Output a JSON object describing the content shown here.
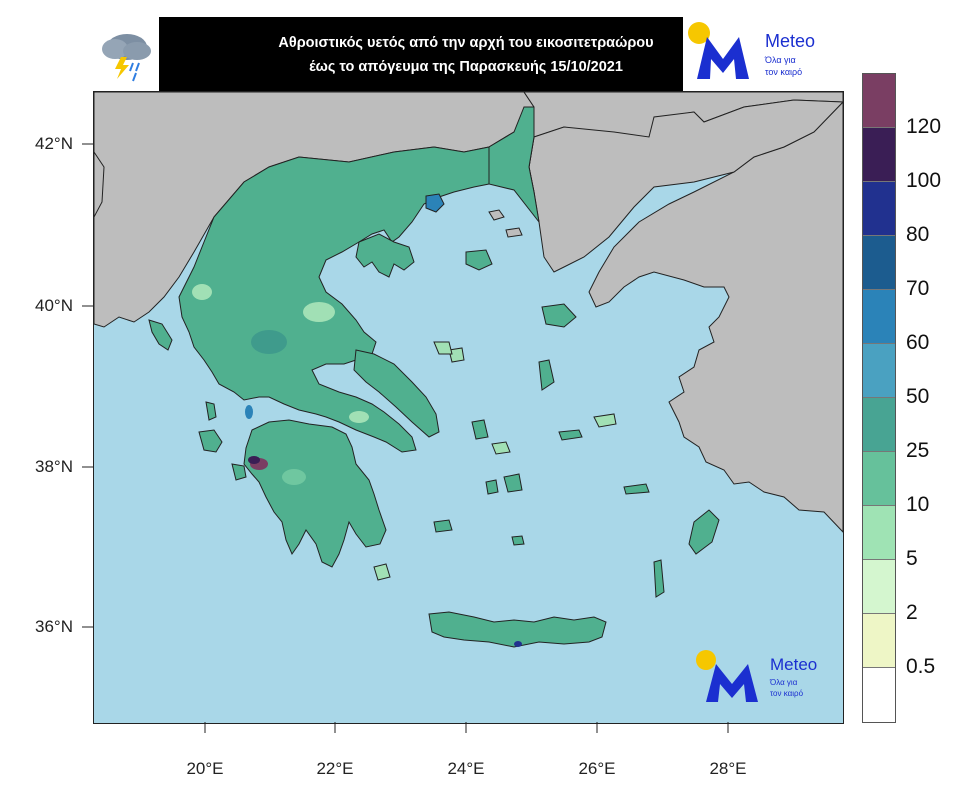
{
  "title": {
    "line1": "Αθροιστικός υετός από την αρχή του εικοσιτετραώρου",
    "line2": "έως το απόγευμα της Παρασκευής 15/10/2021"
  },
  "brand": {
    "name": "Meteo",
    "tagline_line1": "Όλα για",
    "tagline_line2": "τον καιρό"
  },
  "icons": {
    "weather": "rain-cloud-lightning-icon",
    "logo": "meteo-logo"
  },
  "latitude_labels": [
    "42°N",
    "40°N",
    "38°N",
    "36°N"
  ],
  "longitude_labels": [
    "20°E",
    "22°E",
    "24°E",
    "26°E",
    "28°E"
  ],
  "legend": {
    "levels": [
      "120",
      "100",
      "80",
      "70",
      "60",
      "50",
      "25",
      "10",
      "5",
      "2",
      "0.5"
    ],
    "colors": [
      "#7a3e63",
      "#3a1e55",
      "#21318f",
      "#1c5c8f",
      "#2b83b8",
      "#4aa1c1",
      "#48a493",
      "#66c19b",
      "#9fe3b4",
      "#d4f6cf",
      "#eef6c6",
      "#ffffff"
    ]
  },
  "colors": {
    "sea": "#a9d7e8",
    "land_other": "#bdbdbd",
    "rain_main": "#50b08f",
    "rain_light": "#6fc7a0",
    "rain_lighter": "#a1e0b5",
    "rain_heavy": "#3f9b8c",
    "brand_blue": "#1b2fd0",
    "brand_yellow": "#f6c700"
  }
}
